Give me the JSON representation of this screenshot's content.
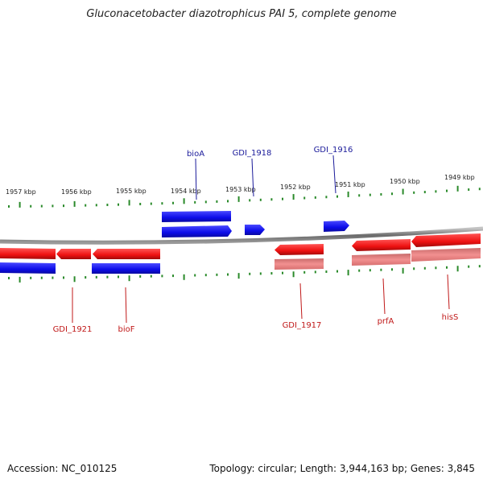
{
  "title": "Gluconacetobacter diazotrophicus PAI 5, complete genome",
  "footer": {
    "accession": "Accession: NC_010125",
    "topology": "Topology: circular; Length: 3,944,163 bp; Genes: 3,845"
  },
  "colors": {
    "forward": "#1010f0",
    "reverse": "#ee1111",
    "reverse_light": "#e47a7a",
    "backbone": "#7a7a7a",
    "ticks": "#2a8a2a",
    "forward_label": "#1a1a9a",
    "reverse_label": "#c01818"
  },
  "scale": {
    "unit": "kbp",
    "ticks": [
      {
        "kbp": 1957,
        "label": "1957 kbp"
      },
      {
        "kbp": 1956,
        "label": "1956 kbp"
      },
      {
        "kbp": 1955,
        "label": "1955 kbp"
      },
      {
        "kbp": 1954,
        "label": "1954 kbp"
      },
      {
        "kbp": 1953,
        "label": "1953 kbp"
      },
      {
        "kbp": 1952,
        "label": "1952 kbp"
      },
      {
        "kbp": 1951,
        "label": "1951 kbp"
      },
      {
        "kbp": 1950,
        "label": "1950 kbp"
      },
      {
        "kbp": 1949,
        "label": "1949 kbp"
      }
    ]
  },
  "genes": [
    {
      "name": "bioA",
      "strand": "forward",
      "labeled": true
    },
    {
      "name": "GDI_1918",
      "strand": "forward",
      "labeled": true
    },
    {
      "name": "GDI_1916",
      "strand": "forward",
      "labeled": true
    },
    {
      "name": "GDI_1921",
      "strand": "reverse",
      "labeled": true
    },
    {
      "name": "bioF",
      "strand": "reverse",
      "labeled": true
    },
    {
      "name": "GDI_1917",
      "strand": "reverse",
      "labeled": true
    },
    {
      "name": "prfA",
      "strand": "reverse",
      "labeled": true
    },
    {
      "name": "hisS",
      "strand": "reverse",
      "labeled": true
    }
  ]
}
